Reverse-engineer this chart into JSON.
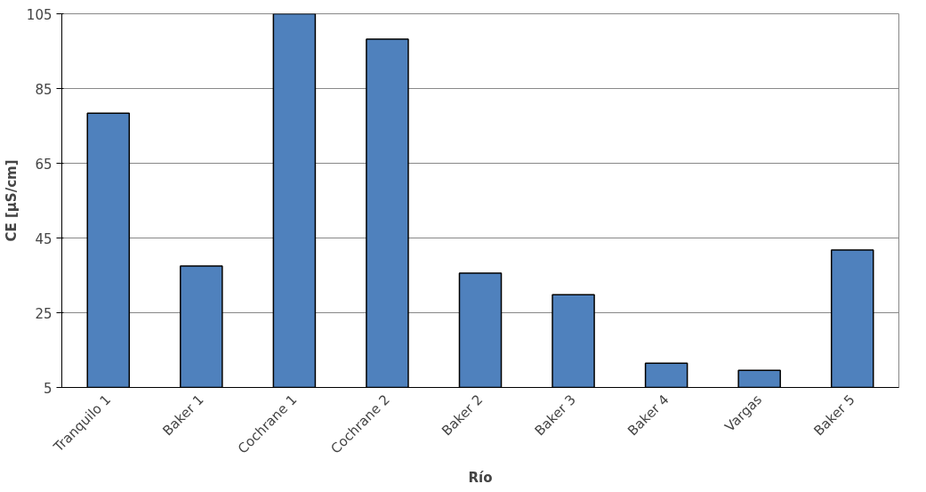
{
  "chart_data": {
    "type": "bar",
    "xlabel": "Río",
    "ylabel": "CE [µS/cm]",
    "categories": [
      "Tranquilo 1",
      "Baker 1",
      "Cochrane 1",
      "Cochrane 2",
      "Baker 2",
      "Baker 3",
      "Baker 4",
      "Vargas",
      "Baker 5"
    ],
    "values": [
      78.4,
      37.5,
      105,
      98.2,
      35.6,
      29.8,
      11.5,
      9.6,
      41.8
    ],
    "color": "#4f81bd",
    "ylim": [
      5,
      105
    ],
    "yticks": [
      5,
      25,
      45,
      65,
      85,
      105
    ],
    "grid": "y"
  }
}
